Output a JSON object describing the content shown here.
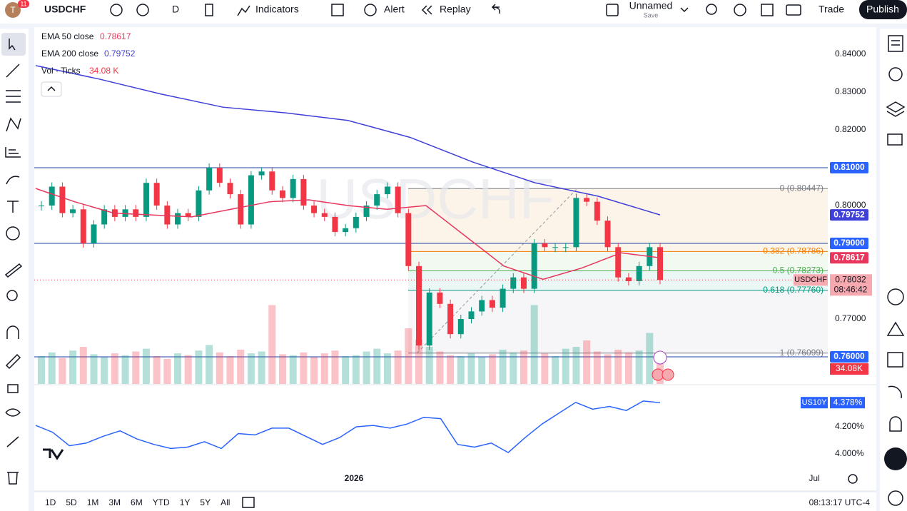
{
  "toolbar": {
    "badge": "11",
    "symbol": "USDCHF",
    "interval": "D",
    "indicators": "Indicators",
    "alert": "Alert",
    "replay": "Replay",
    "layout_name": "Unnamed",
    "layout_status": "Save",
    "trade": "Trade",
    "publish": "Publish"
  },
  "chart_data": {
    "type": "candlestick",
    "watermark": "USDCHF",
    "symbol_tag": "USDCHF",
    "last_price": {
      "value": 0.78032,
      "label": "0.78032"
    },
    "countdown": "08:46:42",
    "closes": [
      0.8,
      0.805,
      0.798,
      0.799,
      0.79,
      0.795,
      0.799,
      0.797,
      0.799,
      0.797,
      0.806,
      0.8,
      0.795,
      0.798,
      0.797,
      0.804,
      0.81,
      0.806,
      0.803,
      0.795,
      0.808,
      0.809,
      0.804,
      0.802,
      0.807,
      0.8,
      0.798,
      0.797,
      0.793,
      0.794,
      0.797,
      0.8,
      0.803,
      0.805,
      0.798,
      0.784,
      0.763,
      0.777,
      0.774,
      0.766,
      0.77,
      0.772,
      0.775,
      0.773,
      0.778,
      0.781,
      0.778,
      0.79,
      0.789,
      0.789,
      0.789,
      0.802,
      0.801,
      0.796,
      0.789,
      0.781,
      0.78,
      0.784,
      0.789,
      0.78032
    ],
    "up_color": "#089981",
    "down_color": "#f23645",
    "indicators": [
      {
        "name": "EMA 50 close",
        "last": {
          "value": 0.78617,
          "label": "0.78617"
        },
        "color": "#e8365d",
        "values": [
          0.8045,
          0.801,
          0.798,
          0.7975,
          0.797,
          0.799,
          0.801,
          0.8015,
          0.8,
          0.799,
          0.8,
          0.792,
          0.784,
          0.7805,
          0.7835,
          0.7875,
          0.78617
        ]
      },
      {
        "name": "EMA 200 close",
        "last": {
          "value": 0.79752,
          "label": "0.79752"
        },
        "color": "#3f3fd9",
        "values": [
          0.837,
          0.8335,
          0.8295,
          0.826,
          0.8245,
          0.8225,
          0.818,
          0.8115,
          0.806,
          0.8025,
          0.79752
        ]
      }
    ],
    "volume": {
      "name": "Vol · Ticks",
      "last_label": "34.08 K",
      "axis_label": "34.08K",
      "values": [
        30,
        34,
        28,
        36,
        40,
        32,
        29,
        33,
        31,
        35,
        38,
        30,
        27,
        33,
        31,
        36,
        42,
        34,
        30,
        37,
        33,
        35,
        85,
        32,
        31,
        34,
        29,
        33,
        36,
        30,
        31,
        35,
        38,
        33,
        36,
        60,
        48,
        40,
        35,
        31,
        30,
        33,
        29,
        32,
        37,
        34,
        36,
        85,
        33,
        30,
        38,
        40,
        47,
        35,
        32,
        37,
        34,
        36,
        55,
        34.08
      ]
    },
    "ylim": [
      0.75283,
      0.84679
    ],
    "yticks": [
      {
        "value": 0.84,
        "label": "0.84000"
      },
      {
        "value": 0.83,
        "label": "0.83000"
      },
      {
        "value": 0.82,
        "label": "0.82000"
      },
      {
        "value": 0.8,
        "label": "0.80000"
      },
      {
        "value": 0.77,
        "label": "0.77000"
      }
    ],
    "hlines": [
      {
        "value": 0.81,
        "label": "0.81000"
      },
      {
        "value": 0.79,
        "label": "0.79000"
      },
      {
        "value": 0.76,
        "label": "0.76000"
      }
    ],
    "fib": [
      {
        "value": 0.80447,
        "label": "0 (0.80447)",
        "color": "#787b86"
      },
      {
        "value": 0.78786,
        "label": "0.382 (0.78786)",
        "color": "#f57c00"
      },
      {
        "value": 0.78273,
        "label": "0.5 (0.78273)",
        "color": "#4caf50"
      },
      {
        "value": 0.7776,
        "label": "0.618 (0.77760)",
        "color": "#089981"
      },
      {
        "value": 0.76099,
        "label": "1 (0.76099)",
        "color": "#787b86"
      }
    ],
    "x_labels": [
      "2026",
      "Jul"
    ],
    "us10y": {
      "name": "US10Y",
      "last": {
        "value": 4.378,
        "label": "4.378%"
      },
      "color": "#2962ff",
      "ylim": [
        3.7263,
        4.5053
      ],
      "yticks": [
        {
          "value": 4.2,
          "label": "4.200%"
        },
        {
          "value": 4.0,
          "label": "4.000%"
        }
      ],
      "values": [
        4.21,
        4.16,
        4.06,
        4.08,
        4.13,
        4.17,
        4.11,
        4.07,
        4.04,
        4.05,
        4.09,
        4.04,
        4.15,
        4.14,
        4.19,
        4.19,
        4.13,
        4.07,
        4.12,
        4.2,
        4.21,
        4.19,
        4.22,
        4.27,
        4.26,
        4.07,
        4.05,
        4.08,
        4.01,
        4.12,
        4.22,
        4.3,
        4.38,
        4.33,
        4.35,
        4.32,
        4.39,
        4.378
      ]
    }
  },
  "footer": {
    "timeframes": [
      "1D",
      "5D",
      "1M",
      "3M",
      "6M",
      "YTD",
      "1Y",
      "5Y",
      "All"
    ],
    "clock": "08:13:17 UTC-4"
  }
}
